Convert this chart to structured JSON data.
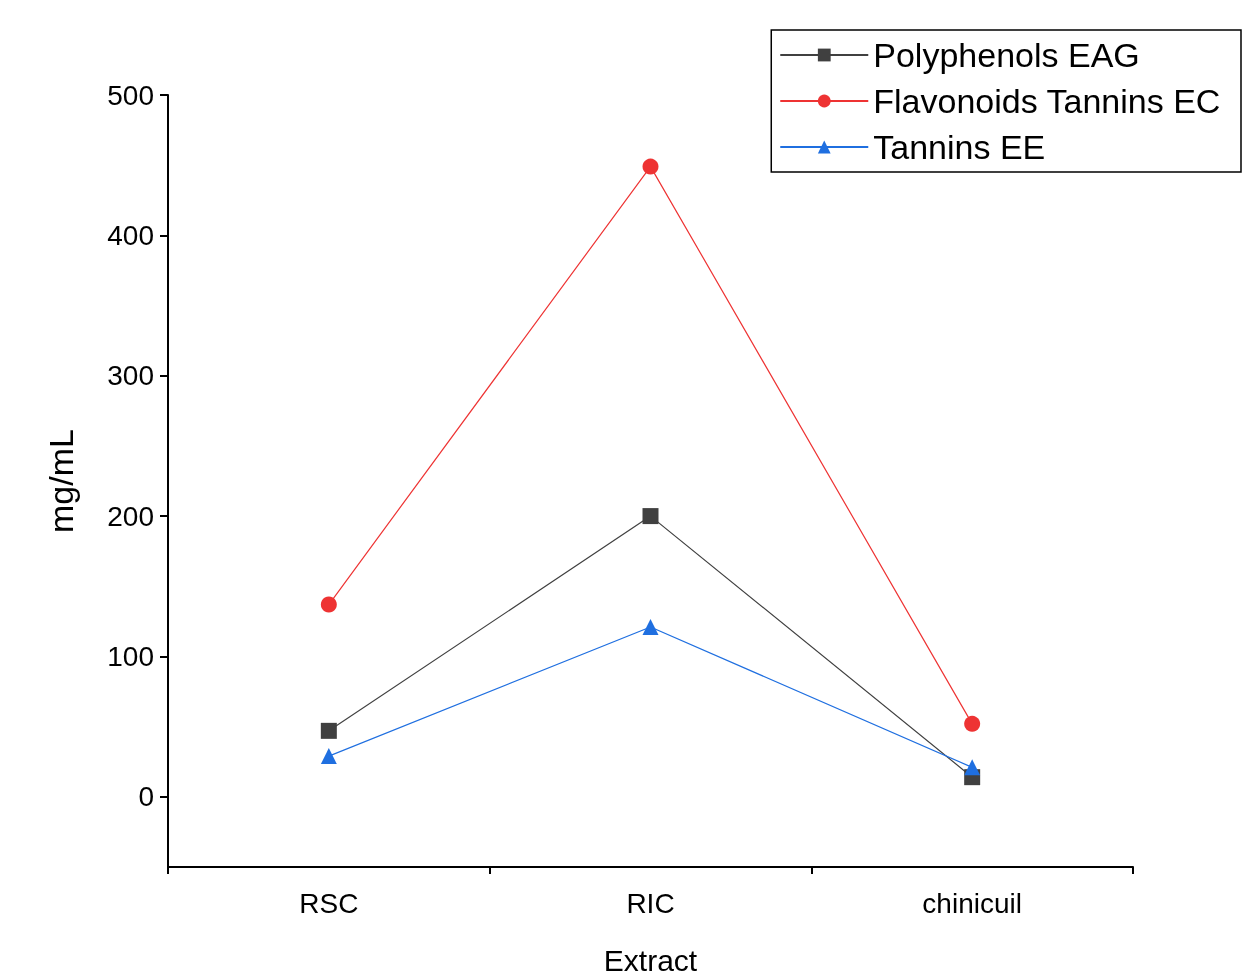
{
  "chart_data": {
    "type": "line",
    "xlabel": "Extract",
    "ylabel": "mg/mL",
    "categories": [
      "RSC",
      "RIC",
      "chinicuil"
    ],
    "series": [
      {
        "name": "Polyphenols EAG",
        "color": "#404040",
        "marker": "square",
        "values": [
          47,
          200,
          14
        ]
      },
      {
        "name": "Flavonoids Tannins EC",
        "color": "#ee3333",
        "marker": "circle",
        "values": [
          137,
          449,
          52
        ]
      },
      {
        "name": "Tannins EE",
        "color": "#1f6fe0",
        "marker": "triangle",
        "values": [
          29,
          121,
          21
        ]
      }
    ],
    "ylim": [
      -50,
      500
    ],
    "yticks": [
      0,
      100,
      200,
      300,
      400,
      500
    ],
    "grid": false,
    "legend": "top right"
  }
}
